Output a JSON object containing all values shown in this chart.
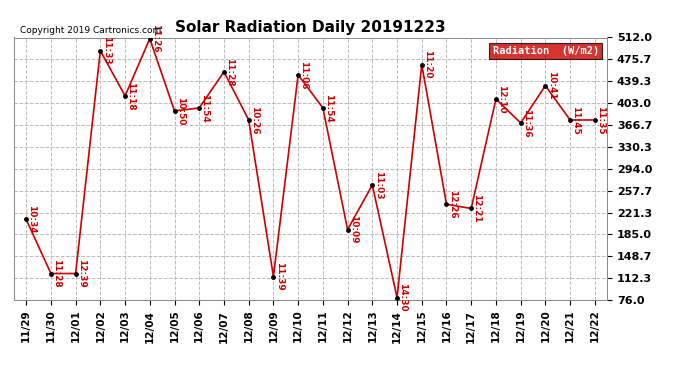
{
  "title": "Solar Radiation Daily 20191223",
  "copyright_text": "Copyright 2019 Cartronics.com",
  "background_color": "#ffffff",
  "plot_bg_color": "#ffffff",
  "line_color": "#cc0000",
  "marker_color": "#000000",
  "grid_color": "#bbbbbb",
  "x_labels": [
    "11/29",
    "11/30",
    "12/01",
    "12/02",
    "12/03",
    "12/04",
    "12/05",
    "12/06",
    "12/07",
    "12/08",
    "12/09",
    "12/10",
    "12/11",
    "12/12",
    "12/13",
    "12/14",
    "12/15",
    "12/16",
    "12/17",
    "12/18",
    "12/19",
    "12/20",
    "12/21",
    "12/22"
  ],
  "y_values": [
    210,
    120,
    120,
    490,
    415,
    510,
    390,
    395,
    455,
    375,
    115,
    450,
    395,
    193,
    267,
    80,
    467,
    235,
    228,
    410,
    370,
    432,
    375,
    375
  ],
  "time_labels": [
    "10:34",
    "11:28",
    "12:39",
    "11:33",
    "11:18",
    "11:26",
    "10:50",
    "11:54",
    "11:28",
    "10:26",
    "11:39",
    "11:06",
    "11:54",
    "10:09",
    "11:03",
    "14:30",
    "11:20",
    "12:26",
    "12:21",
    "12:10",
    "11:36",
    "10:41",
    "11:45",
    "11:35"
  ],
  "y_ticks": [
    76.0,
    112.3,
    148.7,
    185.0,
    221.3,
    257.7,
    294.0,
    330.3,
    366.7,
    403.0,
    439.3,
    475.7,
    512.0
  ],
  "ylim": [
    76.0,
    512.0
  ],
  "legend_bg": "#cc0000",
  "legend_text_color": "#ffffff"
}
